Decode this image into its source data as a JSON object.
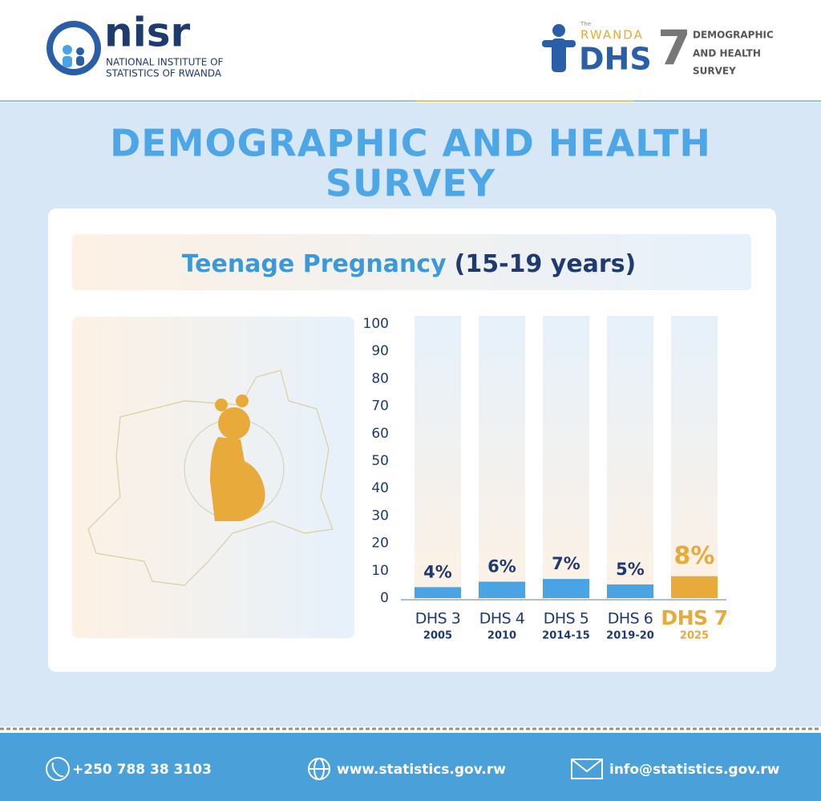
{
  "header": {
    "org_name": "nisr",
    "org_line_1": "NATIONAL INSTITUTE OF",
    "org_line_2": "STATISTICS OF RWANDA",
    "dhs_the": "The",
    "dhs_country": "RWANDA",
    "dhs_name": "DHS",
    "dhs_number": "7",
    "dhs_line_1": "DEMOGRAPHIC",
    "dhs_line_2": "AND HEALTH",
    "dhs_line_3": "SURVEY"
  },
  "title_lines": [
    "DEMOGRAPHIC AND HEALTH",
    "SURVEY"
  ],
  "chart_data": {
    "type": "bar",
    "title": "Teenage Pregnancy",
    "subtitle": "(15-19 years)",
    "categories": [
      "DHS 3",
      "DHS 4",
      "DHS 5",
      "DHS 6",
      "DHS 7"
    ],
    "category_years": [
      "2005",
      "2010",
      "2014-15",
      "2019-20",
      "2025"
    ],
    "values": [
      4,
      6,
      7,
      5,
      8
    ],
    "value_labels": [
      "4%",
      "6%",
      "7%",
      "5%",
      "8%"
    ],
    "colors": [
      "#4aa3e3",
      "#4aa3e3",
      "#4aa3e3",
      "#4aa3e3",
      "#e8aa3a"
    ],
    "ylim": [
      0,
      100
    ],
    "yticks": [
      0,
      10,
      20,
      30,
      40,
      50,
      60,
      70,
      80,
      90,
      100
    ]
  },
  "footer": {
    "phone": "+250 788 38 3103",
    "website": "www.statistics.gov.rw",
    "email": "info@statistics.gov.rw"
  }
}
